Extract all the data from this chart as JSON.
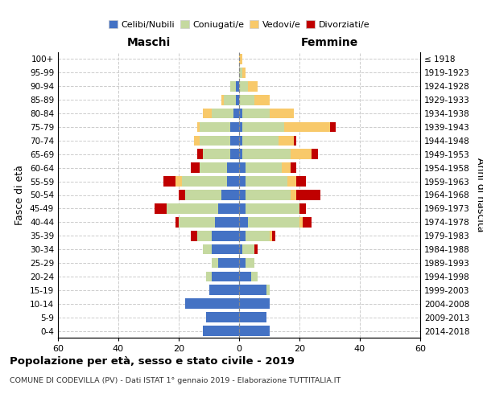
{
  "age_groups": [
    "0-4",
    "5-9",
    "10-14",
    "15-19",
    "20-24",
    "25-29",
    "30-34",
    "35-39",
    "40-44",
    "45-49",
    "50-54",
    "55-59",
    "60-64",
    "65-69",
    "70-74",
    "75-79",
    "80-84",
    "85-89",
    "90-94",
    "95-99",
    "100+"
  ],
  "birth_years": [
    "2014-2018",
    "2009-2013",
    "2004-2008",
    "1999-2003",
    "1994-1998",
    "1989-1993",
    "1984-1988",
    "1979-1983",
    "1974-1978",
    "1969-1973",
    "1964-1968",
    "1959-1963",
    "1954-1958",
    "1949-1953",
    "1944-1948",
    "1939-1943",
    "1934-1938",
    "1929-1933",
    "1924-1928",
    "1919-1923",
    "≤ 1918"
  ],
  "colors": {
    "celibe": "#4472C4",
    "coniugato": "#C5D9A0",
    "vedovo": "#F8C96A",
    "divorziato": "#C00000"
  },
  "maschi": {
    "celibe": [
      12,
      11,
      18,
      10,
      9,
      7,
      9,
      9,
      8,
      7,
      6,
      4,
      4,
      3,
      3,
      3,
      2,
      1,
      1,
      0,
      0
    ],
    "coniugato": [
      0,
      0,
      0,
      0,
      2,
      2,
      3,
      5,
      12,
      17,
      12,
      15,
      9,
      9,
      10,
      10,
      7,
      4,
      2,
      0,
      0
    ],
    "vedovo": [
      0,
      0,
      0,
      0,
      0,
      0,
      0,
      0,
      0,
      0,
      0,
      2,
      0,
      0,
      2,
      1,
      3,
      1,
      0,
      0,
      0
    ],
    "divorziato": [
      0,
      0,
      0,
      0,
      0,
      0,
      0,
      2,
      1,
      4,
      2,
      4,
      3,
      2,
      0,
      0,
      0,
      0,
      0,
      0,
      0
    ]
  },
  "femmine": {
    "nubile": [
      10,
      9,
      10,
      9,
      4,
      2,
      1,
      2,
      3,
      2,
      2,
      2,
      2,
      1,
      1,
      1,
      1,
      0,
      0,
      0,
      0
    ],
    "coniugata": [
      0,
      0,
      0,
      1,
      2,
      3,
      4,
      8,
      17,
      18,
      15,
      14,
      12,
      16,
      12,
      14,
      9,
      5,
      3,
      1,
      0
    ],
    "vedova": [
      0,
      0,
      0,
      0,
      0,
      0,
      0,
      1,
      1,
      0,
      2,
      3,
      3,
      7,
      5,
      15,
      8,
      5,
      3,
      1,
      1
    ],
    "divorziata": [
      0,
      0,
      0,
      0,
      0,
      0,
      1,
      1,
      3,
      2,
      8,
      3,
      2,
      2,
      1,
      2,
      0,
      0,
      0,
      0,
      0
    ]
  },
  "xlim": 60,
  "title": "Popolazione per età, sesso e stato civile - 2019",
  "subtitle": "COMUNE DI CODEVILLA (PV) - Dati ISTAT 1° gennaio 2019 - Elaborazione TUTTITALIA.IT",
  "xlabel_left": "Maschi",
  "xlabel_right": "Femmine",
  "ylabel_left": "Fasce di età",
  "ylabel_right": "Anni di nascita",
  "legend_labels": [
    "Celibi/Nubili",
    "Coniugati/e",
    "Vedovi/e",
    "Divorziati/e"
  ],
  "bg_color": "#ffffff",
  "grid_color": "#cccccc"
}
